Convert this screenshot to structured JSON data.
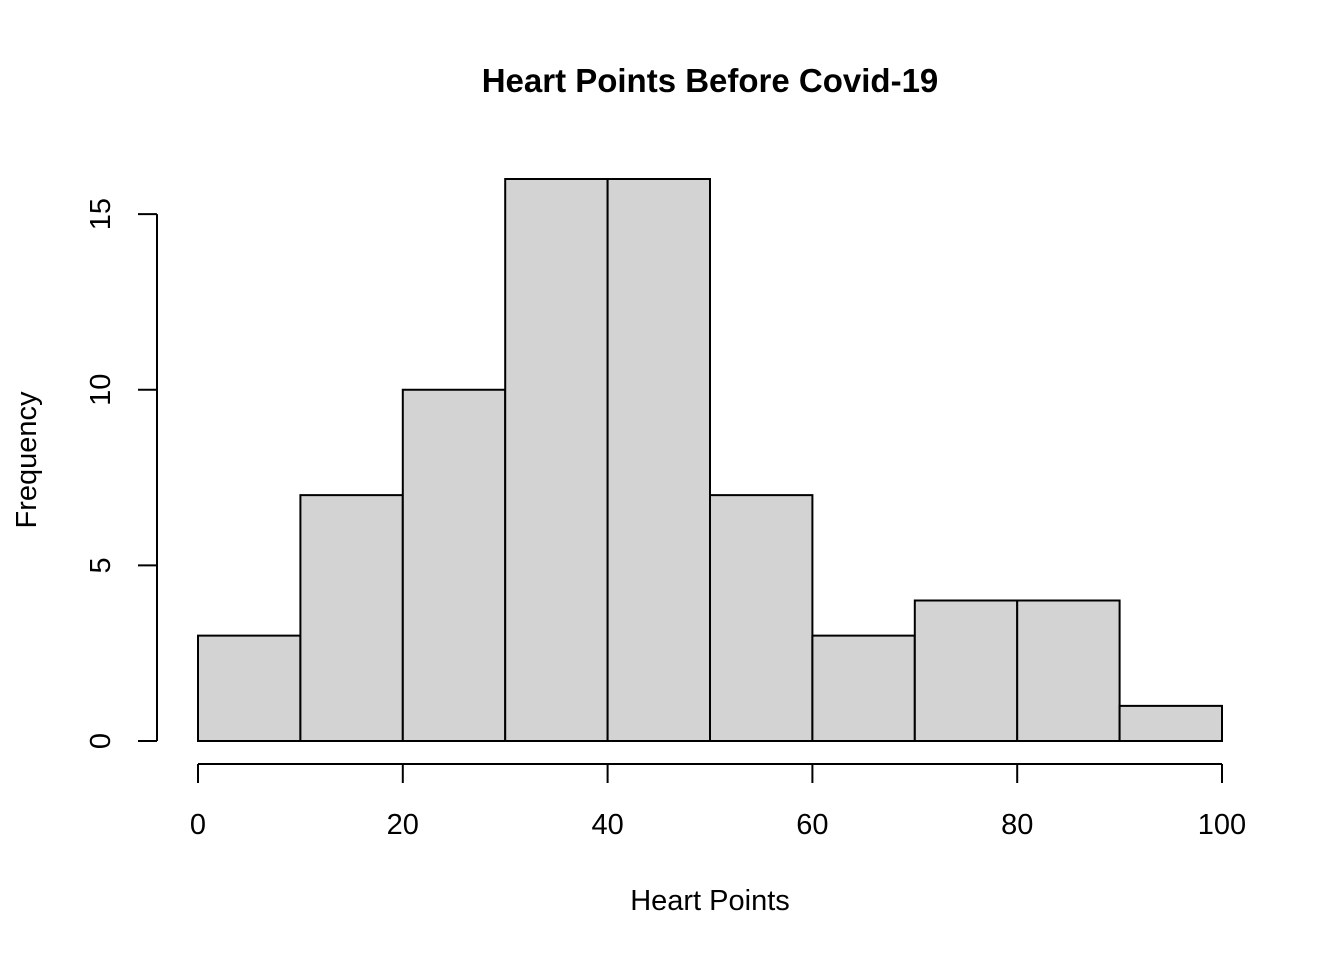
{
  "chart_data": {
    "type": "bar",
    "histogram": true,
    "title": "Heart Points Before Covid-19",
    "xlabel": "Heart Points",
    "ylabel": "Frequency",
    "bin_edges": [
      0,
      10,
      20,
      30,
      40,
      50,
      60,
      70,
      80,
      90,
      100
    ],
    "values": [
      3,
      7,
      10,
      16,
      16,
      7,
      3,
      4,
      4,
      1
    ],
    "xlim": [
      0,
      100
    ],
    "ylim": [
      0,
      16
    ],
    "x_ticks": [
      0,
      20,
      40,
      60,
      80,
      100
    ],
    "y_ticks": [
      0,
      5,
      10,
      15
    ],
    "bar_color": "#d3d3d3",
    "grid": false,
    "legend": "none"
  }
}
